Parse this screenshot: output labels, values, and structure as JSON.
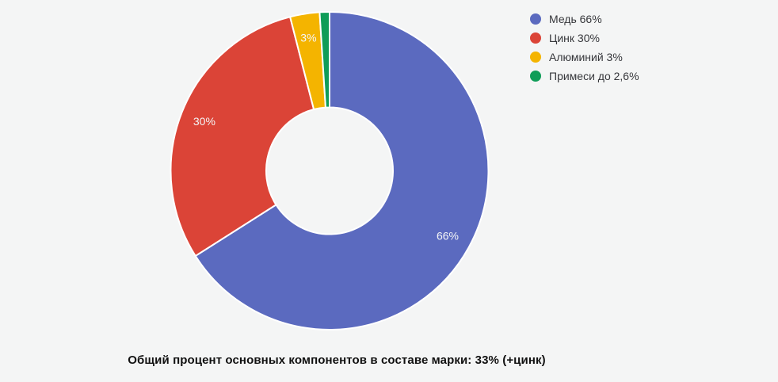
{
  "caption": {
    "text": "Общий процент основных компонентов в составе марки: 33% (+цинк)"
  },
  "style": {
    "background": "#f4f5f5",
    "separator_color": "#ffffff",
    "slice_label_color": "#f4f5f6",
    "legend_text_color": "#36373b",
    "caption_color": "#111111"
  },
  "chart_data": {
    "type": "pie",
    "donut": true,
    "start_angle_deg": 0,
    "direction": "clockwise",
    "legend_position": "right",
    "title": "Общий процент основных компонентов в составе марки: 33% (+цинк)",
    "slices": [
      {
        "id": "copper",
        "category": "Медь",
        "value": 66,
        "display": "66%",
        "legend_label": "Медь 66%",
        "color": "#5b6abf"
      },
      {
        "id": "zinc",
        "category": "Цинк",
        "value": 30,
        "display": "30%",
        "legend_label": "Цинк 30%",
        "color": "#db4437"
      },
      {
        "id": "aluminum",
        "category": "Алюминий",
        "value": 3,
        "display": "3%",
        "legend_label": "Алюминий 3%",
        "color": "#f4b400"
      },
      {
        "id": "impurities",
        "category": "Примеси",
        "value": 1,
        "display": "",
        "legend_label": "Примеси до 2,6%",
        "color": "#0f9d58"
      }
    ]
  }
}
